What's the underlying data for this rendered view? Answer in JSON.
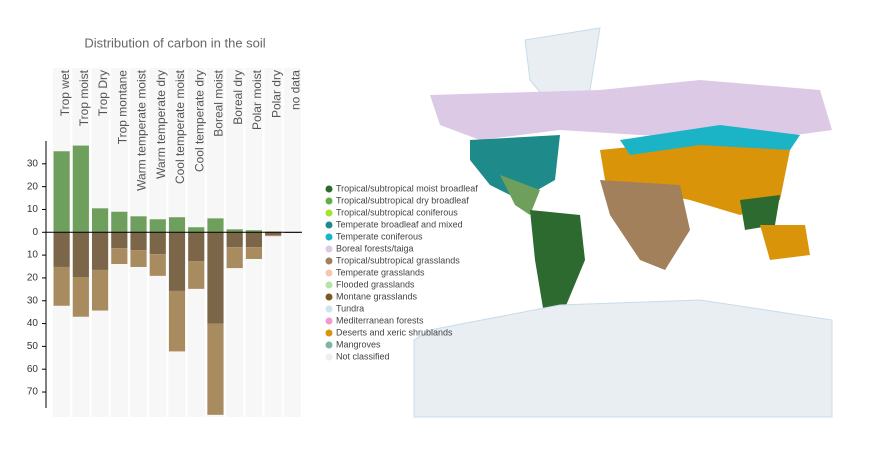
{
  "chart_data": {
    "type": "bar",
    "title": "Distribution of carbon in the soil",
    "categories": [
      "Trop wet",
      "Trop moist",
      "Trop Dry",
      "Trop montane",
      "Warm temperate moist",
      "Warm temperate dry",
      "Cool temperate moist",
      "Cool temperate dry",
      "Boreal moist",
      "Boreal dry",
      "Polar moist",
      "Polar dry",
      "no data"
    ],
    "series": [
      {
        "color": "#6f9f5c",
        "values": [
          35.5,
          38,
          10.5,
          9,
          7,
          5.7,
          6.6,
          2.2,
          6.1,
          1.3,
          0.9,
          0.3,
          0
        ]
      },
      {
        "color": "#7b6649",
        "values": [
          -15.2,
          -19.6,
          -16.5,
          -7,
          -7.8,
          -9.6,
          -25.7,
          -12.6,
          -40,
          -6.5,
          -6.5,
          -1.3,
          -0.3
        ]
      },
      {
        "color": "#a88c60",
        "values": [
          -17,
          -17.4,
          -17.8,
          -6.9,
          -7.4,
          -9.5,
          -26.5,
          -12.2,
          -40,
          -9.2,
          -5.2,
          -0.4,
          0
        ]
      }
    ],
    "ylim": [
      -77,
      40
    ],
    "yticks": [
      30,
      20,
      10,
      0,
      {
        "value": -10,
        "label": "10"
      },
      {
        "value": -20,
        "label": "20"
      },
      {
        "value": -30,
        "label": "30"
      },
      {
        "value": -40,
        "label": "40"
      },
      {
        "value": -50,
        "label": "50"
      },
      {
        "value": -60,
        "label": "60"
      },
      {
        "value": -70,
        "label": "70"
      }
    ]
  },
  "map_legend": [
    {
      "label": "Tropical/subtropical moist broadleaf",
      "color": "#2d6a2f"
    },
    {
      "label": "Tropical/subtropical dry broadleaf",
      "color": "#5fae4a"
    },
    {
      "label": "Tropical/subtropical coniferous",
      "color": "#a6e22e"
    },
    {
      "label": "Temperate broadleaf and mixed",
      "color": "#1f8a8a"
    },
    {
      "label": "Temperate coniferous",
      "color": "#1bb3c6"
    },
    {
      "label": "Boreal forests/taiga",
      "color": "#dcc9e6"
    },
    {
      "label": "Tropical/subtropical grasslands",
      "color": "#a3805c"
    },
    {
      "label": "Temperate grasslands",
      "color": "#f6c6b0"
    },
    {
      "label": "Flooded grasslands",
      "color": "#b7e3a6"
    },
    {
      "label": "Montane grasslands",
      "color": "#7a5a1e"
    },
    {
      "label": "Tundra",
      "color": "#cfe3ec"
    },
    {
      "label": "Mediterranean forests",
      "color": "#f29ad0"
    },
    {
      "label": "Deserts and xeric shrublands",
      "color": "#d9940a"
    },
    {
      "label": "Mangroves",
      "color": "#7fb5a6"
    },
    {
      "label": "Not classified",
      "color": "#eeeeee"
    }
  ]
}
